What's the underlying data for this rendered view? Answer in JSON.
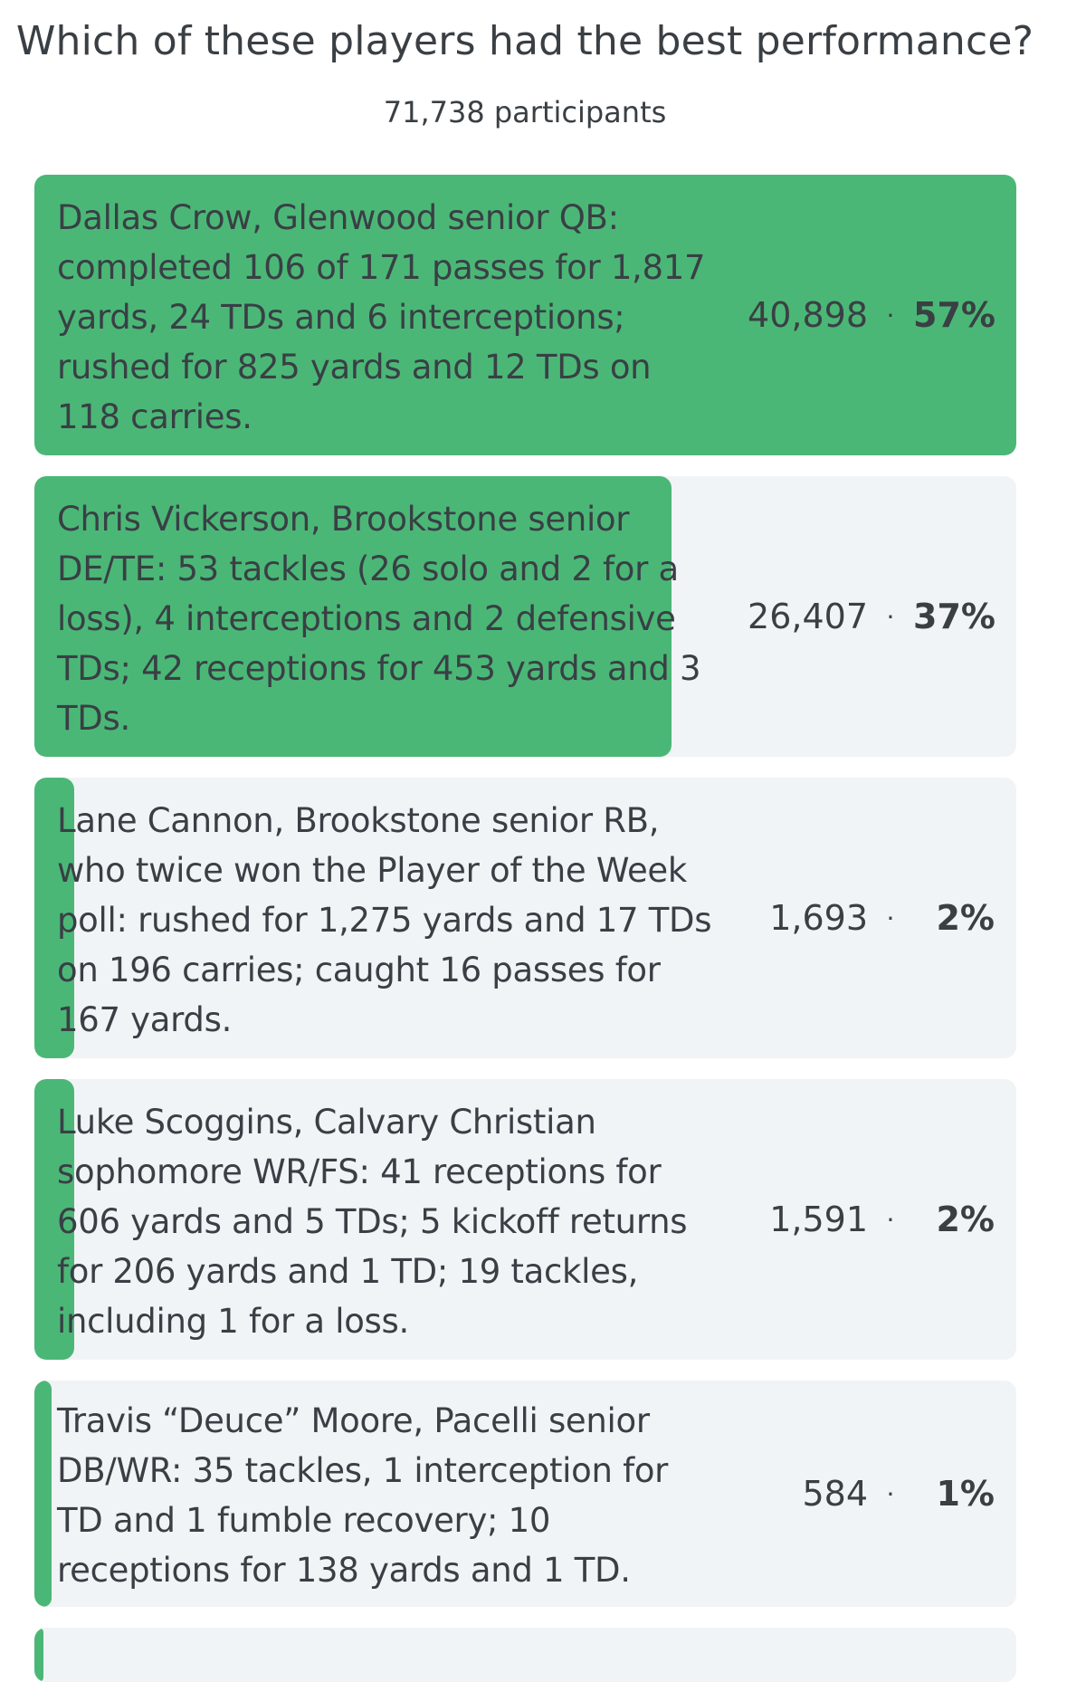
{
  "poll": {
    "question": "Which of these players had the best performance?",
    "participants": "71,738 participants",
    "accent_color": "#4bb776",
    "option_bg_color": "#f1f4f6",
    "separator": "·",
    "options": [
      {
        "text": "Dallas Crow, Glenwood senior QB: completed 106 of 171 passes for 1,817 yards, 24 TDs and 6 interceptions; rushed for 825 yards and 12 TDs on 118 carries.",
        "votes": "40,898",
        "percent_label": "57%",
        "share": 0.57
      },
      {
        "text": "Chris Vickerson, Brookstone senior DE/TE: 53 tackles (26 solo and 2 for a loss), 4 interceptions and 2 defensive TDs; 42 receptions for 453 yards and 3 TDs.",
        "votes": "26,407",
        "percent_label": "37%",
        "share": 0.37
      },
      {
        "text": "Lane Cannon, Brookstone senior RB, who twice won the Player of the Week poll: rushed for 1,275 yards and 17 TDs on 196 carries; caught 16 passes for 167 yards.",
        "votes": "1,693",
        "percent_label": "2%",
        "share": 0.02
      },
      {
        "text": "Luke Scoggins, Calvary Christian sophomore WR/FS: 41 receptions for 606 yards and 5 TDs; 5 kickoff returns for 206 yards and 1 TD; 19 tackles, including 1 for a loss.",
        "votes": "1,591",
        "percent_label": "2%",
        "share": 0.02
      },
      {
        "text": "Travis “Deuce” Moore, Pacelli senior DB/WR: 35 tackles, 1 interception for TD and 1 fumble recovery; 10 receptions for 138 yards and 1 TD.",
        "votes": "584",
        "percent_label": "1%",
        "share": 0.01
      }
    ],
    "partial_option": {
      "share": 0.0
    }
  }
}
